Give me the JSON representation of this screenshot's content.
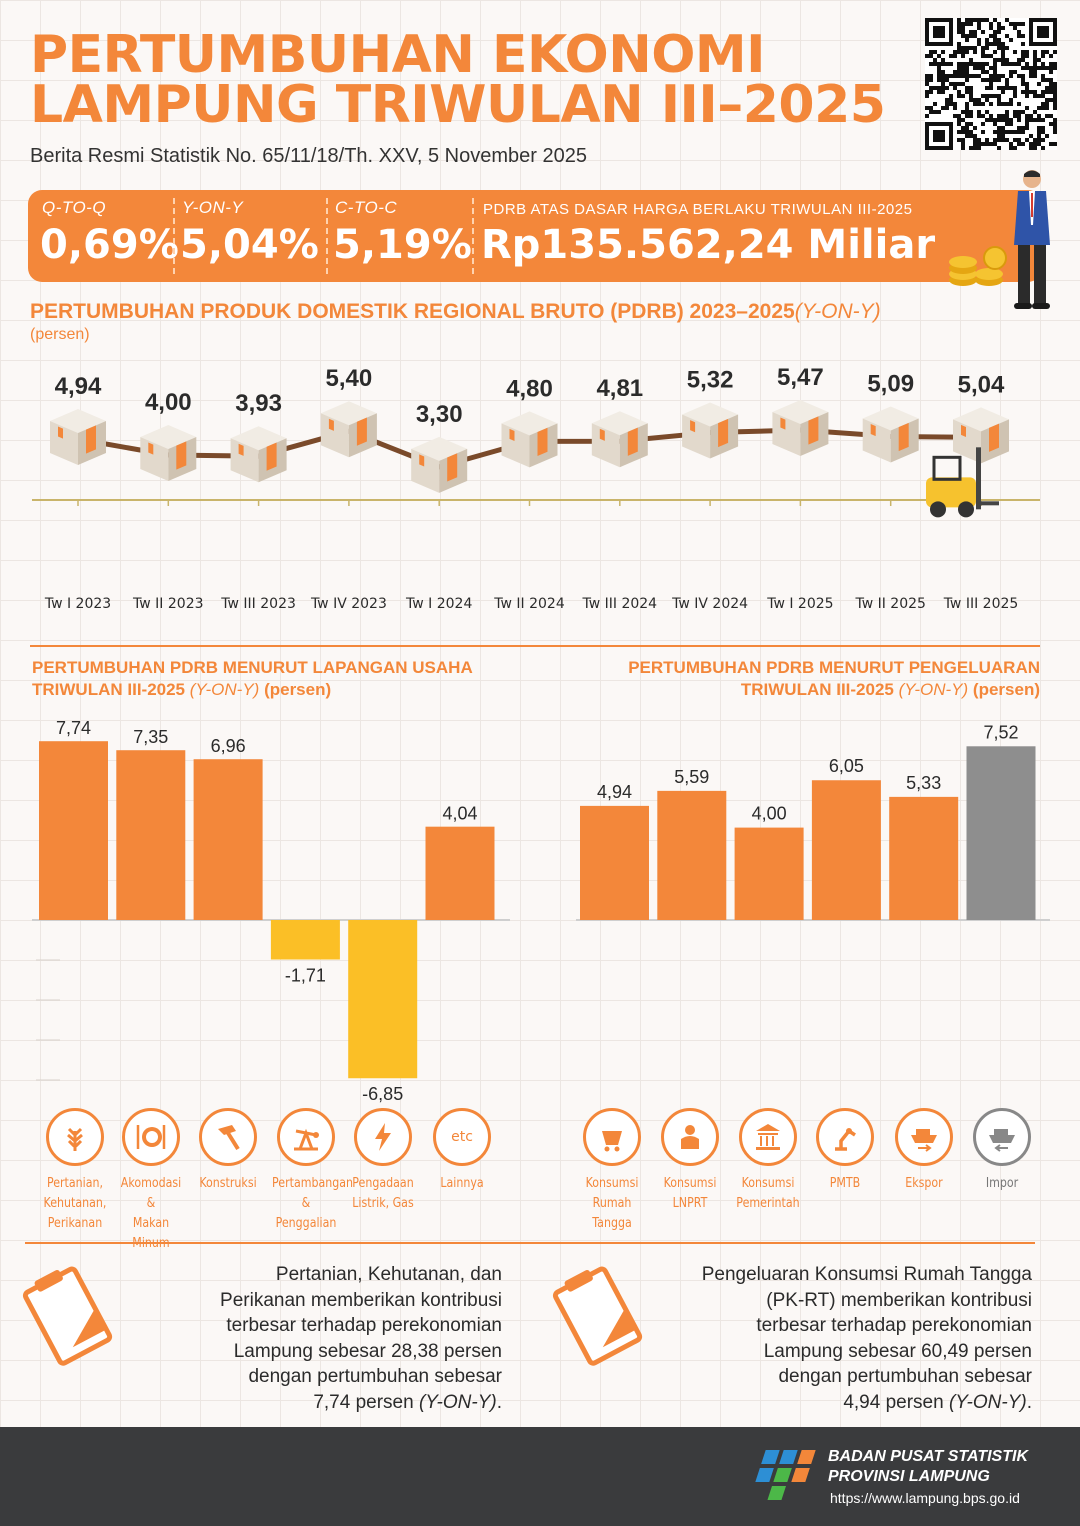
{
  "header": {
    "title_line1": "PERTUMBUHAN EKONOMI",
    "title_line2": "LAMPUNG TRIWULAN III–2025",
    "subtitle": "Berita Resmi Statistik No. 65/11/18/Th. XXV, 5 November 2025"
  },
  "banner": {
    "qtoq_label": "Q-TO-Q",
    "qtoq_value": "0,69%",
    "yony_label": "Y-ON-Y",
    "yony_value": "5,04%",
    "ctoc_label": "C-TO-C",
    "ctoc_value": "5,19%",
    "pdrb_label": "PDRB ATAS DASAR HARGA BERLAKU TRIWULAN III-2025",
    "pdrb_value": "Rp135.562,24 Miliar"
  },
  "trend": {
    "title": "PERTUMBUHAN PRODUK DOMESTIK REGIONAL BRUTO (PDRB) 2023–2025",
    "title_suffix": "(Y-ON-Y)",
    "unit": "(persen)"
  },
  "sector": {
    "title_line1": "PERTUMBUHAN PDRB MENURUT LAPANGAN USAHA",
    "title_line2": "TRIWULAN III-2025",
    "title_suffix_italic": "(Y-ON-Y)",
    "title_suffix": "(persen)",
    "icons": [
      {
        "name": "wheat-icon",
        "label": [
          "Pertanian,",
          "Kehutanan,",
          "Perikanan"
        ]
      },
      {
        "name": "plate-icon",
        "label": [
          "Akomodasi &",
          "Makan Minum"
        ]
      },
      {
        "name": "hammer-icon",
        "label": [
          "Konstruksi"
        ]
      },
      {
        "name": "oil-pump-icon",
        "label": [
          "Pertambangan",
          "& Penggalian"
        ]
      },
      {
        "name": "lightning-icon",
        "label": [
          "Pengadaan",
          "Listrik, Gas"
        ]
      },
      {
        "name": "etc-icon",
        "label": [
          "Lainnya"
        ],
        "text": "etc"
      }
    ]
  },
  "expenditure": {
    "title_line1": "PERTUMBUHAN PDRB MENURUT PENGELUARAN",
    "title_line2": "TRIWULAN III-2025",
    "title_suffix_italic": "(Y-ON-Y)",
    "title_suffix": "(persen)",
    "icons": [
      {
        "name": "household-consumption-icon",
        "label": [
          "Konsumsi",
          "Rumah Tangga"
        ]
      },
      {
        "name": "lnprt-icon",
        "label": [
          "Konsumsi",
          "LNPRT"
        ]
      },
      {
        "name": "government-building-icon",
        "label": [
          "Konsumsi",
          "Pemerintah"
        ]
      },
      {
        "name": "robot-arm-icon",
        "label": [
          "PMTB"
        ]
      },
      {
        "name": "export-ship-icon",
        "label": [
          "Ekspor"
        ]
      },
      {
        "name": "import-ship-icon",
        "label": [
          "Impor"
        ]
      }
    ]
  },
  "notes": {
    "left_lines": [
      "Pertanian, Kehutanan, dan",
      "Perikanan memberikan kontribusi",
      "terbesar terhadap perekonomian",
      "Lampung sebesar 28,38 persen",
      "dengan pertumbuhan sebesar",
      "7,74 persen "
    ],
    "left_suffix": "(Y-ON-Y)",
    "right_lines": [
      "Pengeluaran Konsumsi Rumah Tangga",
      "(PK-RT) memberikan kontribusi",
      "terbesar terhadap perekonomian",
      "Lampung sebesar 60,49 persen",
      "dengan pertumbuhan sebesar",
      "4,94 persen "
    ],
    "right_suffix": "(Y-ON-Y)"
  },
  "footer": {
    "org_line1": "BADAN PUSAT STATISTIK",
    "org_line2": "PROVINSI LAMPUNG",
    "url": "https://www.lampung.bps.go.id"
  },
  "colors": {
    "accent": "#f3873a",
    "negative": "#fbbf26",
    "impor": "#8e8e8e",
    "line": "#7a4a2a",
    "footer": "#3a3b3d"
  },
  "chart_data": [
    {
      "type": "line",
      "title": "PERTUMBUHAN PRODUK DOMESTIK REGIONAL BRUTO (PDRB) 2023–2025(Y-ON-Y)",
      "ylabel": "(persen)",
      "categories": [
        "Tw I 2023",
        "Tw II 2023",
        "Tw III 2023",
        "Tw IV 2023",
        "Tw I 2024",
        "Tw II 2024",
        "Tw III 2024",
        "Tw IV 2024",
        "Tw I 2025",
        "Tw II 2025",
        "Tw III 2025"
      ],
      "values": [
        4.94,
        4.0,
        3.93,
        5.4,
        3.3,
        4.8,
        4.81,
        5.32,
        5.47,
        5.09,
        5.04
      ],
      "labels": [
        "4,94",
        "4,00",
        "3,93",
        "5,40",
        "3,30",
        "4,80",
        "4,81",
        "5,32",
        "5,47",
        "5,09",
        "5,04"
      ],
      "grid": false
    },
    {
      "type": "bar",
      "title": "PERTUMBUHAN PDRB MENURUT LAPANGAN USAHA TRIWULAN III-2025 (Y-ON-Y) (persen)",
      "categories": [
        "Pertanian, Kehutanan, Perikanan",
        "Akomodasi & Makan Minum",
        "Konstruksi",
        "Pertambangan & Penggalian",
        "Pengadaan Listrik, Gas",
        "Lainnya"
      ],
      "values": [
        7.74,
        7.35,
        6.96,
        -1.71,
        -6.85,
        4.04
      ],
      "labels": [
        "7,74",
        "7,35",
        "6,96",
        "-1,71",
        "-6,85",
        "4,04"
      ]
    },
    {
      "type": "bar",
      "title": "PERTUMBUHAN PDRB MENURUT PENGELUARAN TRIWULAN III-2025 (Y-ON-Y) (persen)",
      "categories": [
        "Konsumsi Rumah Tangga",
        "Konsumsi LNPRT",
        "Konsumsi Pemerintah",
        "PMTB",
        "Ekspor",
        "Impor"
      ],
      "values": [
        4.94,
        5.59,
        4.0,
        6.05,
        5.33,
        7.52
      ],
      "labels": [
        "4,94",
        "5,59",
        "4,00",
        "6,05",
        "5,33",
        "7,52"
      ]
    }
  ]
}
